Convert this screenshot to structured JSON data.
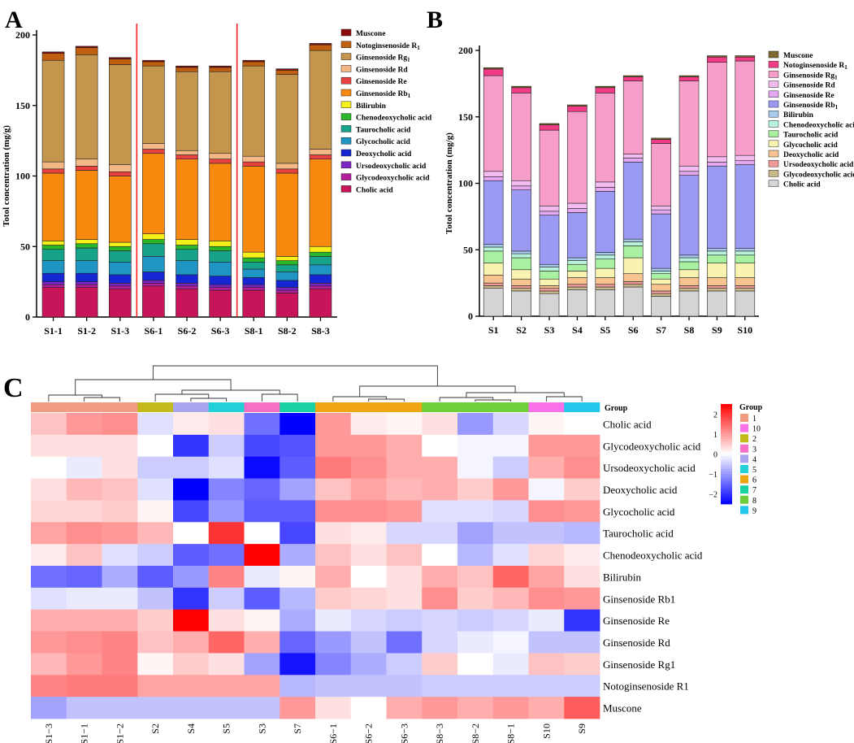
{
  "panel_labels": {
    "a": "A",
    "b": "B",
    "c": "C"
  },
  "colors": {
    "cholic": "#c8155a",
    "glycodeoxy": "#b21e9e",
    "ursodeoxy": "#7d25c4",
    "deoxy": "#1427d2",
    "glyco": "#1e95c2",
    "tauro": "#17a38a",
    "chenodeoxy": "#2ab72a",
    "bilirubin": "#f5f01a",
    "rb1": "#f7890f",
    "re": "#e8413f",
    "rd": "#f4b886",
    "rg1": "#c4964d",
    "noto": "#bf5f0f",
    "muscone": "#8b0a0a",
    "b_cholic": "#d4d4d4",
    "b_glycodeoxy": "#c9b98a",
    "b_ursodeoxy": "#f09a9a",
    "b_deoxy": "#f7c490",
    "b_glyco": "#f8f3b0",
    "b_tauro": "#aaf0a2",
    "b_chenodeoxy": "#b8f2da",
    "b_bilirubin": "#a8c8ec",
    "b_rb1": "#9a9af2",
    "b_re": "#e4a7f0",
    "b_rd": "#f3bcf0",
    "b_rg1": "#f69ec9",
    "b_noto": "#f23b86",
    "b_muscone": "#7d6a2a",
    "heat_low": "#0000ff",
    "heat_mid": "#ffffff",
    "heat_high": "#ff0000",
    "red_line": "#ff2020",
    "g1": "#f49b84",
    "g10": "#fa72e9",
    "g2": "#c3b91d",
    "g3": "#f46fc5",
    "g4": "#a9a6ee",
    "g5": "#22d1d8",
    "g6": "#efa514",
    "g7": "#1ad1a4",
    "g8": "#6fcf38",
    "g9": "#21c5ee"
  },
  "chart_data": [
    {
      "type": "bar",
      "stacked": true,
      "panel": "A",
      "title": "",
      "xlabel": "",
      "ylabel": "Totol concentration (mg/g)",
      "ylim": [
        0,
        200
      ],
      "yticks": [
        0,
        50,
        100,
        150,
        200
      ],
      "categories": [
        "S1-1",
        "S1-2",
        "S1-3",
        "S6-1",
        "S6-2",
        "S6-3",
        "S8-1",
        "S8-2",
        "S8-3"
      ],
      "separator_positions": [
        "S1-3|S6-1",
        "S6-3|S8-1"
      ],
      "series": [
        {
          "name": "Cholic acid",
          "color_key": "cholic",
          "values": [
            21,
            21,
            20,
            22,
            20,
            19,
            19,
            17,
            20
          ]
        },
        {
          "name": "Glycodeoxycholic acid",
          "color_key": "glycodeoxy",
          "values": [
            2,
            2,
            2,
            2,
            2,
            2,
            2,
            2,
            2
          ]
        },
        {
          "name": "Ursodeoxycholic acid",
          "color_key": "ursodeoxy",
          "values": [
            2,
            2,
            2,
            2,
            2,
            2,
            2,
            2,
            2
          ]
        },
        {
          "name": "Deoxycholic acid",
          "color_key": "deoxy",
          "values": [
            6,
            6,
            6,
            6,
            6,
            6,
            5,
            5,
            6
          ]
        },
        {
          "name": "Glycocholic acid",
          "color_key": "glyco",
          "values": [
            9,
            9,
            9,
            11,
            10,
            10,
            6,
            6,
            7
          ]
        },
        {
          "name": "Taurocholic acid",
          "color_key": "tauro",
          "values": [
            8,
            9,
            8,
            9,
            8,
            8,
            5,
            5,
            6
          ]
        },
        {
          "name": "Chenodeoxycholic acid",
          "color_key": "chenodeoxy",
          "values": [
            3,
            3,
            3,
            3,
            3,
            3,
            3,
            3,
            3
          ]
        },
        {
          "name": "Bilirubin",
          "color_key": "bilirubin",
          "values": [
            3,
            3,
            3,
            4,
            4,
            4,
            4,
            3,
            4
          ]
        },
        {
          "name": "Ginsenoside Rb1",
          "color_key": "rb1",
          "values": [
            48,
            49,
            47,
            57,
            57,
            55,
            61,
            59,
            62
          ]
        },
        {
          "name": "Ginsenoside Re",
          "color_key": "re",
          "values": [
            3,
            3,
            3,
            3,
            3,
            3,
            3,
            3,
            3
          ]
        },
        {
          "name": "Ginsenoside Rd",
          "color_key": "rd",
          "values": [
            5,
            5,
            5,
            4,
            3,
            4,
            4,
            4,
            4
          ]
        },
        {
          "name": "Ginsenoside Rg1",
          "color_key": "rg1",
          "values": [
            72,
            74,
            71,
            55,
            56,
            58,
            64,
            63,
            70
          ]
        },
        {
          "name": "Notoginsenoside R1",
          "color_key": "noto",
          "values": [
            5,
            5,
            4,
            3,
            3,
            3,
            3,
            3,
            4
          ]
        },
        {
          "name": "Muscone",
          "color_key": "muscone",
          "values": [
            1,
            1,
            1,
            1,
            1,
            1,
            1,
            1,
            1
          ]
        }
      ],
      "legend_order": [
        "Muscone",
        "Notoginsenoside R1",
        "Ginsenoside Rg1",
        "Ginsenoside Rd",
        "Ginsenoside Re",
        "Ginsenoside Rb1",
        "Bilirubin",
        "Chenodeoxycholic acid",
        "Taurocholic acid",
        "Glycocholic acid",
        "Deoxycholic acid",
        "Ursodeoxycholic acid",
        "Glycodeoxycholic acid",
        "Cholic acid"
      ],
      "legend_placement": "right"
    },
    {
      "type": "bar",
      "stacked": true,
      "panel": "B",
      "title": "",
      "xlabel": "",
      "ylabel": "Totol concentration (mg/g)",
      "ylim": [
        0,
        200
      ],
      "yticks": [
        0,
        50,
        100,
        150,
        200
      ],
      "categories": [
        "S1",
        "S2",
        "S3",
        "S4",
        "S5",
        "S6",
        "S7",
        "S8",
        "S9",
        "S10"
      ],
      "series": [
        {
          "name": "Cholic acid",
          "color_key": "b_cholic",
          "values": [
            21,
            19,
            17,
            20,
            20,
            22,
            15,
            19,
            19,
            19
          ]
        },
        {
          "name": "Glycodeoxycholic acid",
          "color_key": "b_glycodeoxy",
          "values": [
            2,
            2,
            2,
            2,
            2,
            2,
            2,
            2,
            2,
            2
          ]
        },
        {
          "name": "Ursodeoxycholic acid",
          "color_key": "b_ursodeoxy",
          "values": [
            2,
            2,
            2,
            2,
            2,
            2,
            2,
            2,
            2,
            2
          ]
        },
        {
          "name": "Deoxycholic acid",
          "color_key": "b_deoxy",
          "values": [
            6,
            5,
            2,
            5,
            5,
            6,
            5,
            6,
            6,
            6
          ]
        },
        {
          "name": "Glycocholic acid",
          "color_key": "b_glyco",
          "values": [
            9,
            7,
            5,
            5,
            7,
            12,
            4,
            6,
            11,
            11
          ]
        },
        {
          "name": "Taurocholic acid",
          "color_key": "b_tauro",
          "values": [
            9,
            9,
            6,
            5,
            7,
            9,
            4,
            6,
            6,
            6
          ]
        },
        {
          "name": "Chenodeoxycholic acid",
          "color_key": "b_chenodeoxy",
          "values": [
            3,
            3,
            3,
            3,
            3,
            3,
            2,
            3,
            3,
            3
          ]
        },
        {
          "name": "Bilirubin",
          "color_key": "b_bilirubin",
          "values": [
            2,
            2,
            2,
            2,
            2,
            2,
            2,
            2,
            2,
            2
          ]
        },
        {
          "name": "Ginsenoside Rb1",
          "color_key": "b_rb1",
          "values": [
            48,
            46,
            37,
            34,
            46,
            58,
            41,
            60,
            62,
            63
          ]
        },
        {
          "name": "Ginsenoside Re",
          "color_key": "b_re",
          "values": [
            3,
            3,
            3,
            3,
            3,
            3,
            3,
            3,
            3,
            3
          ]
        },
        {
          "name": "Ginsenoside Rd",
          "color_key": "b_rd",
          "values": [
            4,
            4,
            4,
            4,
            4,
            3,
            3,
            4,
            4,
            4
          ]
        },
        {
          "name": "Ginsenoside Rg1",
          "color_key": "b_rg1",
          "values": [
            72,
            66,
            57,
            69,
            67,
            55,
            47,
            64,
            71,
            71
          ]
        },
        {
          "name": "Notoginsenoside R1",
          "color_key": "b_noto",
          "values": [
            5,
            4,
            4,
            4,
            4,
            3,
            3,
            3,
            4,
            3
          ]
        },
        {
          "name": "Muscone",
          "color_key": "b_muscone",
          "values": [
            1,
            1,
            1,
            1,
            1,
            1,
            1,
            1,
            1,
            1
          ]
        }
      ],
      "legend_order": [
        "Muscone",
        "Notoginsenoside R1",
        "Ginsenoside Rg1",
        "Ginsenoside Rd",
        "Ginsenoside Re",
        "Ginsenoside Rb1",
        "Bilirubin",
        "Chenodeoxycholic acid",
        "Taurocholic acid",
        "Glycocholic acid",
        "Deoxycholic acid",
        "Ursodeoxycholic acid",
        "Glycodeoxycholic acid",
        "Cholic acid"
      ],
      "legend_placement": "right"
    },
    {
      "type": "heatmap",
      "panel": "C",
      "columns": [
        "S1−3",
        "S1−1",
        "S1−2",
        "S2",
        "S4",
        "S5",
        "S3",
        "S7",
        "S6−1",
        "S6−2",
        "S6−3",
        "S8−3",
        "S8−2",
        "S8−1",
        "S10",
        "S9"
      ],
      "column_groups": [
        "1",
        "1",
        "1",
        "2",
        "4",
        "5",
        "3",
        "7",
        "6",
        "6",
        "6",
        "8",
        "8",
        "8",
        "10",
        "9"
      ],
      "rows": [
        "Cholic acid",
        "Glycodeoxycholic acid",
        "Ursodeoxycholic acid",
        "Deoxycholic acid",
        "Glycocholic acid",
        "Taurocholic acid",
        "Chenodeoxycholic acid",
        "Bilirubin",
        "Ginsenoside Rb1",
        "Ginsenoside Re",
        "Ginsenoside Rd",
        "Ginsenoside Rg1",
        "Notoginsenoside R1",
        "Muscone"
      ],
      "values": [
        [
          0.6,
          1.0,
          1.1,
          -0.3,
          0.2,
          0.3,
          -1.4,
          -2.5,
          1.0,
          0.2,
          0.1,
          0.3,
          -1.0,
          -0.4,
          0.1,
          0.0
        ],
        [
          0.3,
          0.3,
          0.3,
          0.0,
          -2.0,
          -0.5,
          -1.8,
          -1.7,
          1.0,
          1.0,
          0.8,
          0.0,
          -0.1,
          -0.1,
          1.0,
          1.0
        ],
        [
          0.0,
          -0.2,
          0.3,
          -0.5,
          -0.5,
          -0.3,
          -2.4,
          -1.6,
          1.3,
          1.1,
          0.8,
          0.8,
          -0.1,
          -0.5,
          0.8,
          1.1
        ],
        [
          0.3,
          0.7,
          0.6,
          -0.3,
          -2.6,
          -1.2,
          -1.5,
          -0.9,
          0.6,
          0.9,
          0.7,
          0.8,
          0.5,
          1.0,
          -0.1,
          0.5
        ],
        [
          0.4,
          0.4,
          0.5,
          0.1,
          -1.8,
          -1.0,
          -1.6,
          -1.6,
          1.1,
          1.1,
          1.0,
          -0.3,
          -0.3,
          -0.4,
          1.1,
          1.0
        ],
        [
          0.9,
          1.1,
          1.0,
          0.7,
          0.0,
          2.0,
          0.0,
          -1.8,
          0.3,
          0.2,
          -0.4,
          -0.4,
          -0.9,
          -0.6,
          -0.6,
          -0.7
        ],
        [
          0.2,
          0.6,
          -0.3,
          -0.5,
          -1.6,
          -1.4,
          2.5,
          -0.8,
          0.6,
          0.3,
          0.6,
          0.0,
          -0.7,
          -0.3,
          0.4,
          0.2
        ],
        [
          -1.4,
          -1.5,
          -0.8,
          -1.6,
          -1.0,
          1.2,
          -0.2,
          0.1,
          0.8,
          0.0,
          0.3,
          0.8,
          0.6,
          1.5,
          0.9,
          0.3
        ],
        [
          -0.3,
          -0.2,
          -0.2,
          -0.6,
          -2.0,
          -0.5,
          -1.6,
          -0.7,
          0.5,
          0.4,
          0.3,
          1.1,
          0.5,
          0.7,
          1.1,
          1.0
        ],
        [
          0.8,
          0.8,
          0.8,
          0.5,
          2.5,
          0.3,
          0.1,
          -0.8,
          -0.2,
          -0.4,
          -0.5,
          -0.4,
          -0.5,
          -0.4,
          -0.2,
          -2.0
        ],
        [
          1.0,
          1.1,
          1.2,
          0.6,
          0.8,
          1.5,
          0.8,
          -1.5,
          -1.0,
          -0.6,
          -1.4,
          -0.4,
          -0.2,
          -0.1,
          -0.6,
          -0.6
        ],
        [
          0.7,
          1.0,
          1.2,
          0.1,
          0.5,
          0.3,
          -0.9,
          -2.3,
          -1.2,
          -0.8,
          -0.5,
          0.5,
          0.0,
          -0.2,
          0.6,
          0.5
        ],
        [
          1.2,
          1.3,
          1.3,
          0.9,
          0.9,
          0.9,
          0.9,
          -0.7,
          -0.6,
          -0.6,
          -0.6,
          -0.5,
          -0.5,
          -0.5,
          -0.5,
          -0.5
        ],
        [
          -0.9,
          -0.6,
          -0.6,
          -0.6,
          -0.6,
          -0.6,
          -0.6,
          1.0,
          0.3,
          0.0,
          0.8,
          1.0,
          0.8,
          1.0,
          0.8,
          1.6
        ]
      ],
      "color_scale": {
        "min": -2.5,
        "max": 2.5,
        "ticks": [
          2,
          1,
          0,
          -1,
          -2
        ],
        "tick_labels": [
          "2",
          "1",
          "0",
          "−1",
          "−2"
        ]
      },
      "group_label": "Group",
      "group_legend_title": "Group",
      "group_legend": [
        "1",
        "10",
        "2",
        "3",
        "4",
        "5",
        "6",
        "7",
        "8",
        "9"
      ]
    }
  ]
}
